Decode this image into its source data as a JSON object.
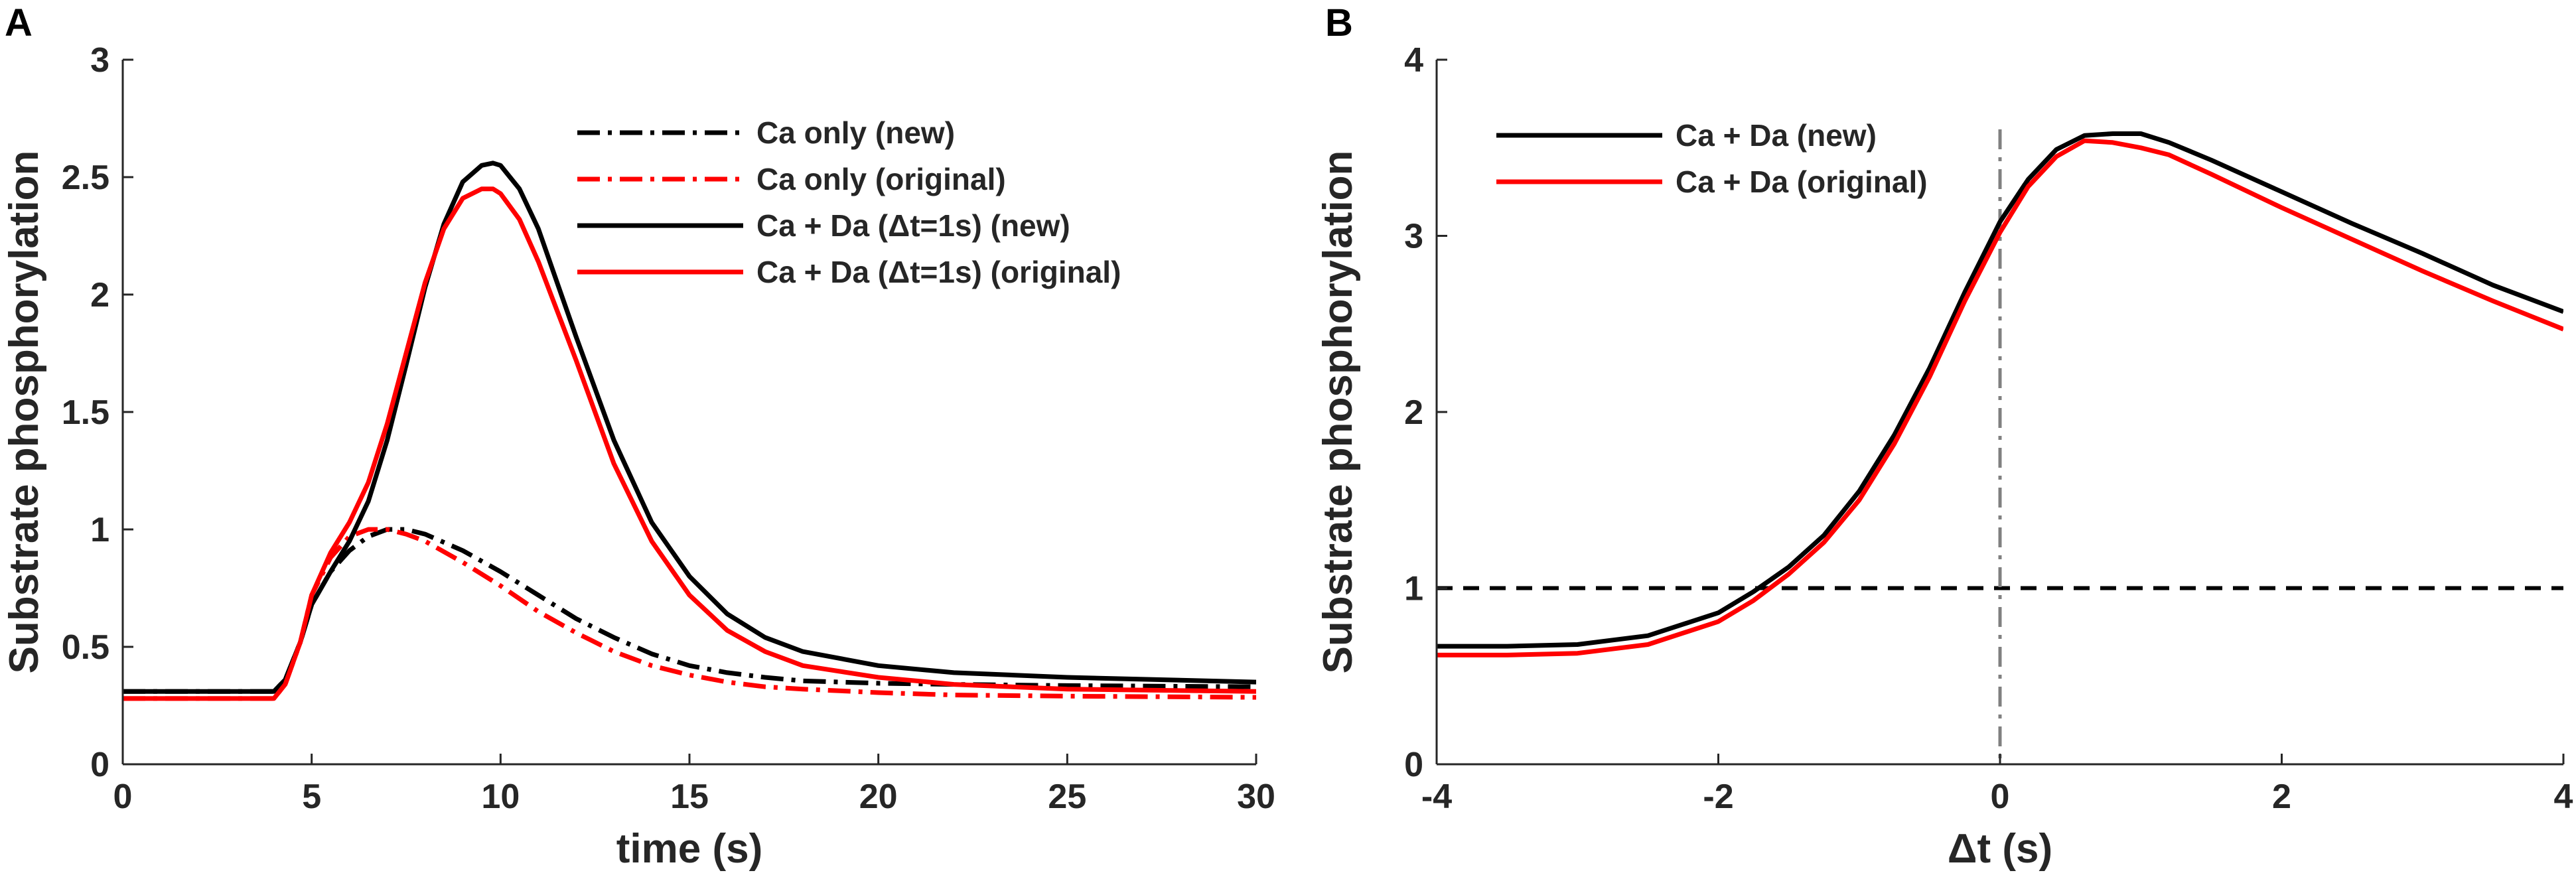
{
  "figure": {
    "colors": {
      "black": "#000000",
      "red": "#ff0000",
      "gray": "#808080",
      "axis": "#262626"
    }
  },
  "chart_data": [
    {
      "panel_label": "A",
      "type": "line",
      "xlabel": "time (s)",
      "ylabel": "Substrate phosphorylation",
      "xlim": [
        0,
        30
      ],
      "ylim": [
        0,
        3
      ],
      "xticks": [
        0,
        5,
        10,
        15,
        20,
        25,
        30
      ],
      "xtick_labels": [
        "0",
        "5",
        "10",
        "15",
        "20",
        "25",
        "30"
      ],
      "yticks": [
        0,
        0.5,
        1,
        1.5,
        2,
        2.5,
        3
      ],
      "ytick_labels": [
        "0",
        "0.5",
        "1",
        "1.5",
        "2",
        "2.5",
        "3"
      ],
      "grid": false,
      "legend_position": "top-right",
      "series": [
        {
          "name": "Ca only (new)",
          "color": "#000000",
          "dash": "dashdot",
          "x": [
            0,
            4,
            4.3,
            4.7,
            5,
            5.5,
            6,
            6.5,
            7,
            7.5,
            8,
            9,
            10,
            11,
            12,
            13,
            14,
            15,
            16,
            17,
            18,
            20,
            22,
            25,
            30
          ],
          "y": [
            0.31,
            0.31,
            0.36,
            0.52,
            0.68,
            0.82,
            0.91,
            0.97,
            1.0,
            1.0,
            0.98,
            0.91,
            0.82,
            0.72,
            0.62,
            0.54,
            0.47,
            0.42,
            0.39,
            0.37,
            0.355,
            0.345,
            0.34,
            0.335,
            0.33
          ]
        },
        {
          "name": "Ca only (original)",
          "color": "#ff0000",
          "dash": "dashdot",
          "x": [
            0,
            4,
            4.3,
            4.7,
            5,
            5.5,
            6,
            6.5,
            7,
            7.5,
            8,
            9,
            10,
            11,
            12,
            13,
            14,
            15,
            16,
            17,
            18,
            20,
            22,
            25,
            30
          ],
          "y": [
            0.28,
            0.28,
            0.34,
            0.52,
            0.72,
            0.88,
            0.97,
            1.0,
            1.0,
            0.98,
            0.95,
            0.86,
            0.76,
            0.65,
            0.56,
            0.48,
            0.42,
            0.38,
            0.35,
            0.33,
            0.32,
            0.305,
            0.295,
            0.29,
            0.285
          ]
        },
        {
          "name": "Ca + Da (Δt=1s) (new)",
          "color": "#000000",
          "dash": "solid",
          "x": [
            0,
            4,
            4.3,
            4.7,
            5,
            5.5,
            6,
            6.5,
            7,
            7.5,
            8,
            8.5,
            9,
            9.5,
            9.8,
            10,
            10.5,
            11,
            11.5,
            12,
            13,
            14,
            15,
            16,
            17,
            18,
            20,
            22,
            25,
            30
          ],
          "y": [
            0.31,
            0.31,
            0.36,
            0.52,
            0.68,
            0.82,
            0.95,
            1.12,
            1.38,
            1.7,
            2.03,
            2.3,
            2.48,
            2.55,
            2.56,
            2.55,
            2.45,
            2.28,
            2.05,
            1.82,
            1.38,
            1.03,
            0.8,
            0.64,
            0.54,
            0.48,
            0.42,
            0.39,
            0.37,
            0.35
          ]
        },
        {
          "name": "Ca + Da (Δt=1s) (original)",
          "color": "#ff0000",
          "dash": "solid",
          "x": [
            0,
            4,
            4.3,
            4.7,
            5,
            5.5,
            6,
            6.5,
            7,
            7.5,
            8,
            8.5,
            9,
            9.5,
            9.8,
            10,
            10.5,
            11,
            11.5,
            12,
            13,
            14,
            15,
            16,
            17,
            18,
            20,
            22,
            25,
            30
          ],
          "y": [
            0.28,
            0.28,
            0.34,
            0.52,
            0.72,
            0.9,
            1.03,
            1.2,
            1.45,
            1.75,
            2.05,
            2.28,
            2.41,
            2.45,
            2.45,
            2.43,
            2.32,
            2.14,
            1.93,
            1.72,
            1.28,
            0.95,
            0.72,
            0.57,
            0.48,
            0.42,
            0.37,
            0.34,
            0.32,
            0.31
          ]
        }
      ]
    },
    {
      "panel_label": "B",
      "type": "line",
      "xlabel": "Δt (s)",
      "ylabel": "Substrate phosphorylation",
      "xlim": [
        -4,
        4
      ],
      "ylim": [
        0,
        4
      ],
      "xticks": [
        -4,
        -2,
        0,
        2,
        4
      ],
      "xtick_labels": [
        "-4",
        "-2",
        "0",
        "2",
        "4"
      ],
      "yticks": [
        0,
        1,
        2,
        3,
        4
      ],
      "ytick_labels": [
        "0",
        "1",
        "2",
        "3",
        "4"
      ],
      "grid": false,
      "legend_position": "top-left",
      "reference_lines": [
        {
          "orientation": "horizontal",
          "value": 1,
          "color": "#000000",
          "dash": "dashed"
        },
        {
          "orientation": "vertical",
          "value": 0,
          "color": "#808080",
          "dash": "dashdot"
        }
      ],
      "series": [
        {
          "name": "Ca + Da (new)",
          "color": "#000000",
          "dash": "solid",
          "x": [
            -4,
            -3.5,
            -3,
            -2.5,
            -2,
            -1.75,
            -1.5,
            -1.25,
            -1,
            -0.75,
            -0.5,
            -0.25,
            0,
            0.2,
            0.4,
            0.6,
            0.8,
            1,
            1.2,
            1.5,
            2,
            2.5,
            3,
            3.5,
            4
          ],
          "y": [
            0.67,
            0.67,
            0.68,
            0.73,
            0.86,
            0.98,
            1.12,
            1.3,
            1.55,
            1.87,
            2.25,
            2.68,
            3.08,
            3.32,
            3.49,
            3.57,
            3.58,
            3.58,
            3.53,
            3.43,
            3.25,
            3.07,
            2.9,
            2.72,
            2.57
          ]
        },
        {
          "name": "Ca + Da (original)",
          "color": "#ff0000",
          "dash": "solid",
          "x": [
            -4,
            -3.5,
            -3,
            -2.5,
            -2,
            -1.75,
            -1.5,
            -1.25,
            -1,
            -0.75,
            -0.5,
            -0.25,
            0,
            0.2,
            0.4,
            0.6,
            0.8,
            1,
            1.2,
            1.5,
            2,
            2.5,
            3,
            3.5,
            4
          ],
          "y": [
            0.62,
            0.62,
            0.63,
            0.68,
            0.81,
            0.93,
            1.08,
            1.26,
            1.5,
            1.82,
            2.2,
            2.63,
            3.02,
            3.28,
            3.45,
            3.54,
            3.53,
            3.5,
            3.46,
            3.35,
            3.16,
            2.98,
            2.8,
            2.63,
            2.47
          ]
        }
      ]
    }
  ]
}
